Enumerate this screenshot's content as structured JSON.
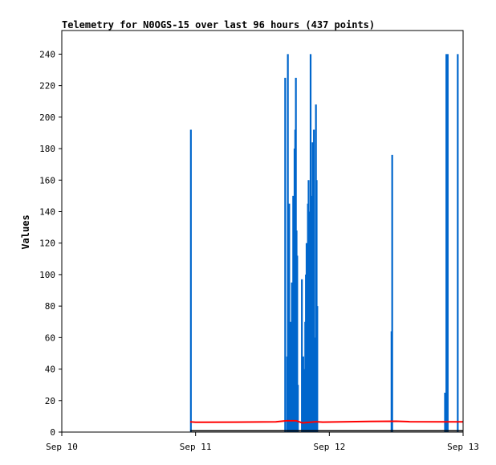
{
  "chart_data": {
    "type": "line",
    "title": "Telemetry for N0OGS-15 over last 96 hours (437 points)",
    "xlabel": "",
    "ylabel": "Values",
    "x_ticks": [
      "Sep 10",
      "Sep 11",
      "Sep 12",
      "Sep 13"
    ],
    "xlim": [
      "Sep 10",
      "Sep 13"
    ],
    "ylim": [
      0,
      255
    ],
    "y_ticks": [
      0,
      20,
      40,
      60,
      80,
      100,
      120,
      140,
      160,
      180,
      200,
      220,
      240
    ],
    "grid": false,
    "legend": "none",
    "colors": {
      "blue_series": "#0066cc",
      "red_series": "#ff0000",
      "black_series": "#000000"
    },
    "series": [
      {
        "color": "#0066cc",
        "style": "spikes",
        "points": [
          [
            0.965,
            192
          ],
          [
            1.67,
            225
          ],
          [
            1.685,
            48
          ],
          [
            1.69,
            240
          ],
          [
            1.7,
            145
          ],
          [
            1.705,
            50
          ],
          [
            1.71,
            70
          ],
          [
            1.72,
            95
          ],
          [
            1.73,
            150
          ],
          [
            1.735,
            110
          ],
          [
            1.74,
            180
          ],
          [
            1.745,
            192
          ],
          [
            1.75,
            225
          ],
          [
            1.755,
            128
          ],
          [
            1.76,
            112
          ],
          [
            1.765,
            30
          ],
          [
            1.795,
            97
          ],
          [
            1.805,
            48
          ],
          [
            1.81,
            20
          ],
          [
            1.815,
            40
          ],
          [
            1.82,
            70
          ],
          [
            1.825,
            100
          ],
          [
            1.83,
            120
          ],
          [
            1.835,
            95
          ],
          [
            1.84,
            145
          ],
          [
            1.845,
            160
          ],
          [
            1.85,
            140
          ],
          [
            1.86,
            240
          ],
          [
            1.87,
            150
          ],
          [
            1.875,
            184
          ],
          [
            1.885,
            192
          ],
          [
            1.89,
            60
          ],
          [
            1.9,
            208
          ],
          [
            1.905,
            160
          ],
          [
            1.91,
            80
          ],
          [
            2.465,
            64
          ],
          [
            2.47,
            176
          ],
          [
            2.865,
            25
          ],
          [
            2.875,
            240
          ],
          [
            2.885,
            240
          ],
          [
            2.96,
            240
          ]
        ]
      },
      {
        "color": "#ff0000",
        "style": "line",
        "points": [
          [
            0.96,
            6.5
          ],
          [
            1.0,
            6.2
          ],
          [
            1.3,
            6.3
          ],
          [
            1.6,
            6.5
          ],
          [
            1.68,
            7.2
          ],
          [
            1.75,
            7.2
          ],
          [
            1.8,
            5.8
          ],
          [
            1.9,
            6.6
          ],
          [
            1.95,
            6.3
          ],
          [
            2.0,
            6.4
          ],
          [
            2.3,
            6.8
          ],
          [
            2.5,
            6.9
          ],
          [
            2.6,
            6.6
          ],
          [
            2.9,
            6.5
          ],
          [
            3.0,
            6.5
          ]
        ]
      },
      {
        "color": "#000000",
        "style": "line",
        "points": [
          [
            0.96,
            0.8
          ],
          [
            3.0,
            0.8
          ]
        ]
      }
    ]
  }
}
